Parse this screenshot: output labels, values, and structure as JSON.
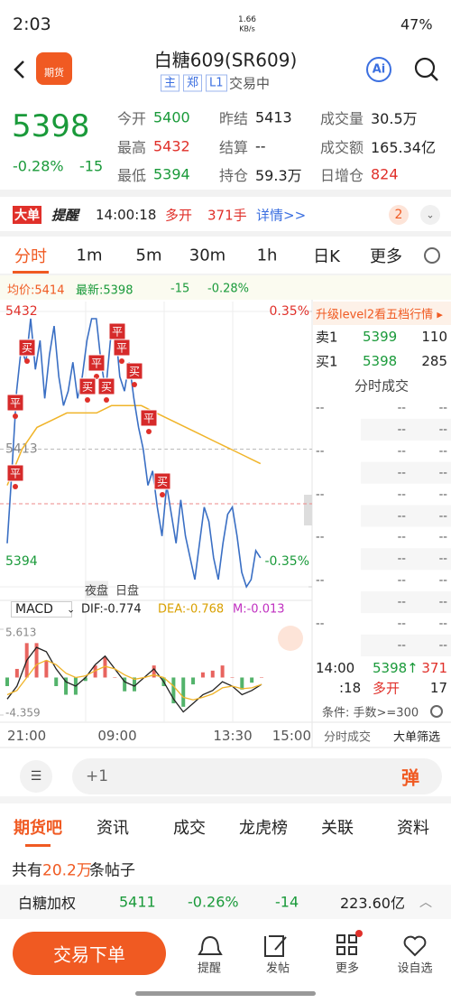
{
  "status": {
    "time": "2:03",
    "speed": "1.66",
    "speed_unit": "KB/s",
    "battery": "47%"
  },
  "header": {
    "app_icon": "期货",
    "title": "白糖609(SR609)",
    "tags": [
      "主",
      "郑",
      "L1"
    ],
    "state": "交易中",
    "ai": "Ai"
  },
  "quote": {
    "price": "5398",
    "change_pct": "-0.28%",
    "change": "-15",
    "color": "#1a9a3a",
    "fields": [
      {
        "label": "今开",
        "value": "5400",
        "color": "#1a9a3a"
      },
      {
        "label": "昨结",
        "value": "5413",
        "color": "#222222"
      },
      {
        "label": "成交量",
        "value": "30.5万",
        "color": "#222222"
      },
      {
        "label": "最高",
        "value": "5432",
        "color": "#e0302a"
      },
      {
        "label": "结算",
        "value": "--",
        "color": "#222222"
      },
      {
        "label": "成交额",
        "value": "165.34亿",
        "color": "#222222"
      },
      {
        "label": "最低",
        "value": "5394",
        "color": "#1a9a3a"
      },
      {
        "label": "持仓",
        "value": "59.3万",
        "color": "#222222"
      },
      {
        "label": "日增仓",
        "value": "824",
        "color": "#e0302a"
      }
    ]
  },
  "alert": {
    "badge": "大单",
    "badge2": "提醒",
    "time": "14:00:18",
    "action": "多开",
    "amount": "371手",
    "detail": "详情>>",
    "count": "2"
  },
  "tabs": [
    "分时",
    "1m",
    "5m",
    "30m",
    "1h",
    "日K",
    "更多"
  ],
  "chart_data": [
    {
      "type": "line",
      "legend": [
        "均价:5414",
        "最新:5398",
        "-15",
        "-0.28%"
      ],
      "series": [
        {
          "color": "#3a6fc4",
          "values": [
            5400,
            5410,
            5421,
            5427,
            5425,
            5431,
            5424,
            5428,
            5420,
            5426,
            5430,
            5423,
            5419,
            5421,
            5425,
            5420,
            5423,
            5428,
            5431,
            5431,
            5425,
            5421,
            5428,
            5430,
            5423,
            5421,
            5425,
            5420,
            5416,
            5413,
            5408,
            5410,
            5405,
            5401,
            5408,
            5404,
            5400,
            5406,
            5401,
            5398,
            5395,
            5400,
            5405,
            5403,
            5398,
            5395,
            5400,
            5404,
            5405,
            5401,
            5396,
            5394,
            5395,
            5399,
            5398
          ]
        },
        {
          "color": "#f0b429",
          "values": [
            5408,
            5413,
            5416,
            5417,
            5418,
            5418,
            5418,
            5419,
            5419,
            5419,
            5418,
            5417,
            5416,
            5415,
            5414,
            5413,
            5412,
            5411
          ]
        }
      ],
      "ylim": [
        5394,
        5432
      ],
      "yticks": [
        5432,
        5413,
        5394
      ],
      "y2lim": [
        -0.35,
        0.35
      ],
      "y2ticks": [
        {
          "value": 0.35,
          "label": "0.35%"
        },
        {
          "value": -0.35,
          "label": "-0.35%"
        }
      ],
      "sessions": [
        "夜盘",
        "日盘"
      ],
      "x_labels": [
        "21:00",
        "09:00",
        "13:30",
        "15:00"
      ],
      "markers": [
        "买",
        "平",
        "平",
        "平",
        "平",
        "买",
        "买",
        "平",
        "买",
        "平",
        "买"
      ]
    },
    {
      "type": "macd",
      "title": "MACD",
      "legend": [
        "DIF:-0.774",
        "DEA:-0.768",
        "M:-0.013"
      ],
      "series": [
        {
          "color": "#222222",
          "values": [
            -2.5,
            -1,
            2,
            3.5,
            3,
            1,
            -0.5,
            -1,
            0,
            1.5,
            2.5,
            1,
            -0.5,
            -1,
            0,
            1,
            -0.5,
            -2.5,
            -4,
            -3,
            -2,
            -1.5,
            -0.5,
            -1,
            -2,
            -1.5,
            -0.8
          ]
        },
        {
          "color": "#f0b429",
          "values": [
            -2,
            -1.5,
            0,
            1.5,
            2,
            1.5,
            0.5,
            0,
            0.2,
            0.8,
            1.3,
            1,
            0.3,
            -0.2,
            0,
            0.3,
            0,
            -1,
            -2.3,
            -2.6,
            -2.3,
            -1.9,
            -1.2,
            -1,
            -1.3,
            -1.2,
            -0.8
          ]
        }
      ],
      "histogram": [
        -1,
        1,
        4,
        4,
        2,
        -1,
        -2,
        -2,
        -0.4,
        1.4,
        2.4,
        0,
        -1.6,
        -1.6,
        0,
        1.4,
        -1,
        -3,
        -3.4,
        -0.8,
        0.6,
        0.8,
        1.4,
        0,
        -1.4,
        -0.6,
        0
      ],
      "up_color": "#e0302a",
      "down_color": "#1a9a3a",
      "ylim": [
        -4.359,
        5.613
      ],
      "yticks": [
        5.613,
        -4.359
      ]
    }
  ],
  "orderbook": {
    "upgrade": "升级level2看五档行情 ▸",
    "rows": [
      [
        "卖1",
        "5399",
        "110"
      ],
      [
        "买1",
        "5398",
        "285"
      ]
    ],
    "tape_title": "分时成交",
    "tape": [
      [
        "--",
        "--",
        "--"
      ],
      [
        "--",
        "--"
      ],
      [
        "--",
        "--",
        "--"
      ],
      [
        "--",
        "--"
      ],
      [
        "--",
        "--",
        "--"
      ],
      [
        "--",
        "--"
      ],
      [
        "--",
        "--",
        "--"
      ],
      [
        "--",
        "--"
      ],
      [
        "--",
        "--",
        "--"
      ],
      [
        "--",
        "--"
      ],
      [
        "--",
        "--",
        "--"
      ],
      [
        "--",
        "--"
      ]
    ],
    "last": [
      "14:00",
      "5398↑",
      "371"
    ],
    "last2": [
      ":18",
      "多开",
      "17"
    ],
    "condition": "条件: 手数>=300",
    "tabs": [
      "分时成交",
      "大单筛选"
    ]
  },
  "input": {
    "placeholder": "+1",
    "danmu": "弹"
  },
  "sections": [
    "期货吧",
    "资讯",
    "成交",
    "龙虎榜",
    "关联",
    "资料"
  ],
  "posts": {
    "prefix": "共有",
    "count": "20.2万",
    "suffix": "条帖子"
  },
  "ticker": {
    "name": "白糖加权",
    "price": "5411",
    "change_pct": "-0.26%",
    "change": "-14",
    "amount": "223.60亿"
  },
  "bottom": {
    "trade": "交易下单",
    "items": [
      "提醒",
      "发帖",
      "更多",
      "设自选"
    ]
  }
}
